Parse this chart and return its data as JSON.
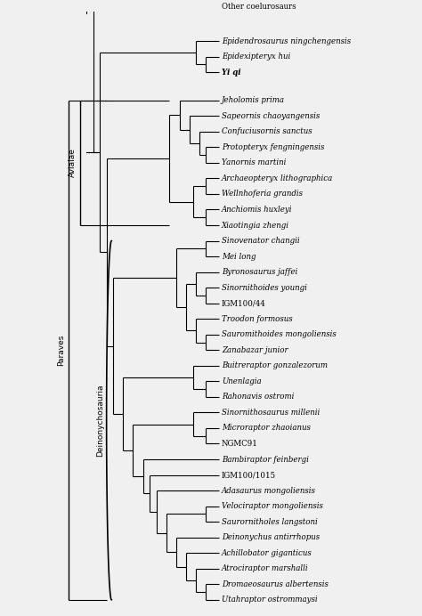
{
  "taxa": [
    "Other coelurosaurs",
    "Epidendrosaurus ningchengensis",
    "Epidexipteryx hui",
    "Yi qi",
    "Jeholomis prima",
    "Sapeornis chaoyangensis",
    "Confuciusornis sanctus",
    "Protopteryx fengningensis",
    "Yanornis martini",
    "Archaeopteryx lithographica",
    "Wellnhoferia grandis",
    "Anchiomis huxleyi",
    "Xiaotingia zhengi",
    "Sinovenator changii",
    "Mei long",
    "Byronosaurus jaffei",
    "Sinornithoides youngi",
    "IGM100/44",
    "Troodon formosus",
    "Sauromithoides mongoliensis",
    "Zanabazar junior",
    "Buitreraptor gonzalezorum",
    "Unenlagia",
    "Rahonavis ostromi",
    "Sinornithosaurus millenii",
    "Microraptor zhaoianus",
    "NGMC91",
    "Bambiraptor feinbergi",
    "IGM100/1015",
    "Adasaurus mongoliensis",
    "Velociraptor mongoliensis",
    "Saurornitholes langstoni",
    "Deinonychus antirrhopus",
    "Achillobator giganticus",
    "Atrociraptor marshalli",
    "Dromaeosaurus albertensis",
    "Utahraptor ostrommaysi"
  ],
  "bold_taxa": [
    "Yi qi"
  ],
  "italic_taxa": [
    "Epidendrosaurus ningchengensis",
    "Epidexipteryx hui",
    "Yi qi",
    "Jeholomis prima",
    "Sapeornis chaoyangensis",
    "Confuciusornis sanctus",
    "Protopteryx fengningensis",
    "Yanornis martini",
    "Archaeopteryx lithographica",
    "Wellnhoferia grandis",
    "Anchiomis huxleyi",
    "Xiaotingia zhengi",
    "Sinovenator changii",
    "Mei long",
    "Byronosaurus jaffei",
    "Sinornithoides youngi",
    "Troodon formosus",
    "Sauromithoides mongoliensis",
    "Zanabazar junior",
    "Buitreraptor gonzalezorum",
    "Unenlagia",
    "Rahonavis ostromi",
    "Sinornithosaurus millenii",
    "Microraptor zhaoianus",
    "Bambiraptor feinbergi",
    "Adasaurus mongoliensis",
    "Velociraptor mongoliensis",
    "Saurornitholes langstoni",
    "Deinonychus antirrhopus",
    "Achillobator giganticus",
    "Atrociraptor marshalli",
    "Dromaeosaurus albertensis",
    "Utahraptor ostrommaysi"
  ],
  "non_italic_taxa": [
    "Other coelurosaurs",
    "IGM100/44",
    "NGMC91",
    "IGM100/1015"
  ],
  "bg_color": "#f0f0f0",
  "line_color": "#000000",
  "text_color": "#000000",
  "label_fontsize": 6.2,
  "fig_width": 4.74,
  "fig_height": 6.92,
  "xlim": [
    -2.5,
    10.0
  ],
  "ylim": [
    -0.5,
    38.0
  ]
}
